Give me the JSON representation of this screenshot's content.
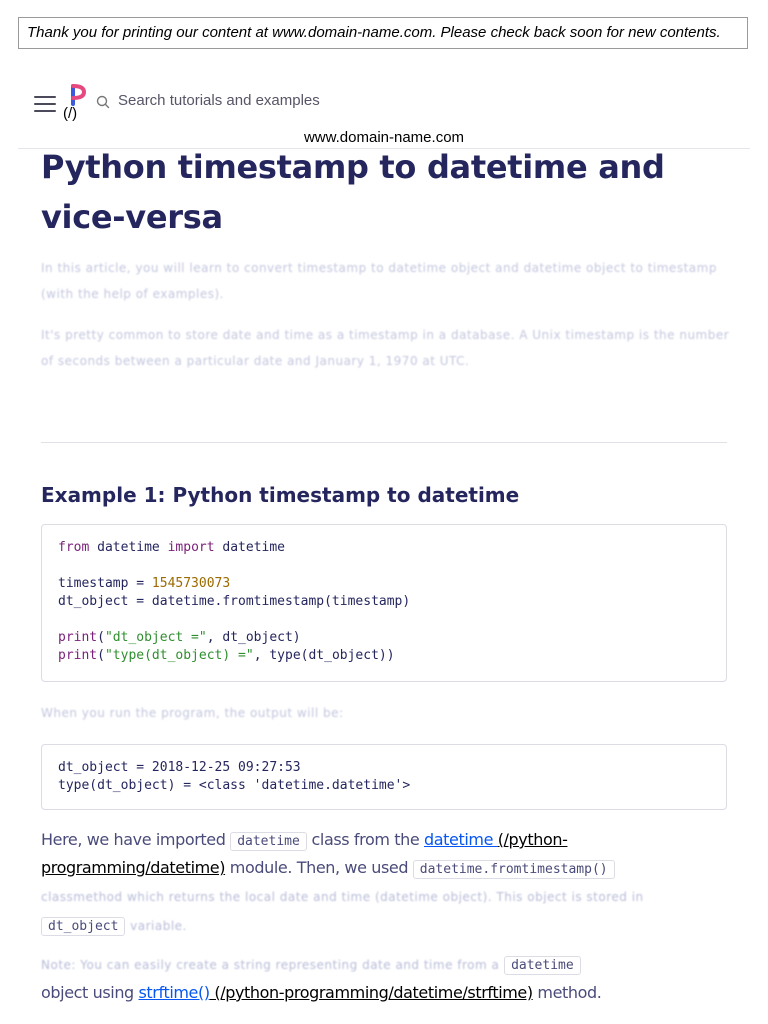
{
  "print_notice": "Thank you for printing our content at www.domain-name.com. Please check back soon for new contents.",
  "header": {
    "logo_text": "(/)",
    "search_placeholder": "Search tutorials and examples",
    "url": "www.domain-name.com"
  },
  "article": {
    "title": "Python timestamp to datetime and vice-versa",
    "intro_1": "In this article, you will learn to convert timestamp to datetime object and datetime object to timestamp (with the help of examples).",
    "intro_2": "It's pretty common to store date and time as a timestamp in a database. A Unix timestamp is the number of seconds between a particular date and January 1, 1970 at UTC.",
    "example1_heading": "Example 1: Python timestamp to datetime",
    "code1": {
      "line1_kw1": "from",
      "line1_mid": " datetime ",
      "line1_kw2": "import",
      "line1_end": " datetime",
      "line3_start": "timestamp = ",
      "line3_num": "1545730073",
      "line4": "dt_object = datetime.fromtimestamp(timestamp)",
      "line6_fn": "print",
      "line6_open": "(",
      "line6_str": "\"dt_object =\"",
      "line6_end": ", dt_object)",
      "line7_fn": "print",
      "line7_open": "(",
      "line7_str": "\"type(dt_object) =\"",
      "line7_end": ", type(dt_object))"
    },
    "run_text": "When you run the program, the output will be:",
    "output": {
      "line1": "dt_object = 2018-12-25 09:27:53",
      "line2": "type(dt_object) = <class 'datetime.datetime'>"
    },
    "para1": {
      "t1": "Here, we have imported ",
      "code1": "datetime",
      "t2": " class from the ",
      "link1": "datetime ",
      "link1_path": "(/python-programming/datetime)",
      "t3": " module. Then, we used ",
      "code2": "datetime.fromtimestamp()",
      "faded1": "classmethod which returns the local date and time (datetime object). This object is stored in",
      "code3": "dt_object",
      "faded2": "variable."
    },
    "para2": {
      "faded": "Note: You can easily create a string representing date and time from a",
      "code": "datetime",
      "t1": "object using ",
      "link": "strftime()",
      "link_path": " (/python-programming/datetime/strftime)",
      "t2": " method."
    }
  },
  "colors": {
    "heading": "#25265e",
    "body_text": "#4a4b7a",
    "link": "#0556f3",
    "keyword": "#7a1f7a",
    "number": "#9b6a00",
    "string": "#2f8f2f"
  },
  "icons": [
    "hamburger-menu-icon",
    "programiz-logo-icon",
    "search-icon"
  ]
}
